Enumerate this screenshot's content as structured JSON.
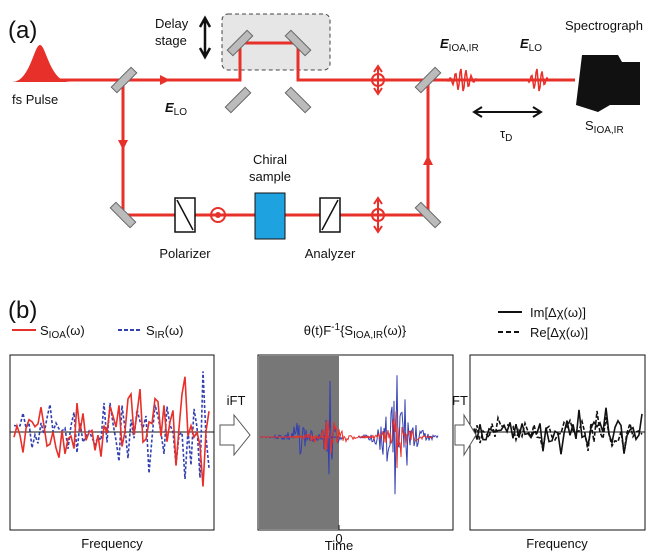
{
  "panel_a": {
    "label": "(a)",
    "delay_stage": [
      "Delay",
      "stage"
    ],
    "fs_pulse": "fs Pulse",
    "e_lo_in": {
      "main": "E",
      "sub": "LO"
    },
    "e_ioa_ir": {
      "main": "E",
      "sub": "IOA,IR"
    },
    "e_lo_out": {
      "main": "E",
      "sub": "LO"
    },
    "spectrograph": "Spectrograph",
    "signal": {
      "main": "S",
      "sub": "IOA,IR"
    },
    "tau": {
      "main": "τ",
      "sub": "D"
    },
    "chiral_sample": [
      "Chiral",
      "sample"
    ],
    "polarizer": "Polarizer",
    "analyzer": "Analyzer"
  },
  "panel_b": {
    "label": "(b)",
    "legend": [
      {
        "main": "S",
        "sub": "IOA",
        "tail": "(ω)"
      },
      {
        "main": "S",
        "sub": "IR",
        "tail": "(ω)"
      }
    ],
    "middle_title": {
      "a": "θ(t)F",
      "sup": "-1",
      "b": "{S",
      "sub": "IOA,IR",
      "c": "(ω)}"
    },
    "ift": "iFT",
    "ft": "FT",
    "right_legend": [
      "Im[Δχ(ω)]",
      "Re[Δχ(ω)]"
    ],
    "left_xlabel": "Frequency",
    "middle_xlabel": "Time",
    "middle_zero": "0",
    "right_xlabel": "Frequency"
  }
}
